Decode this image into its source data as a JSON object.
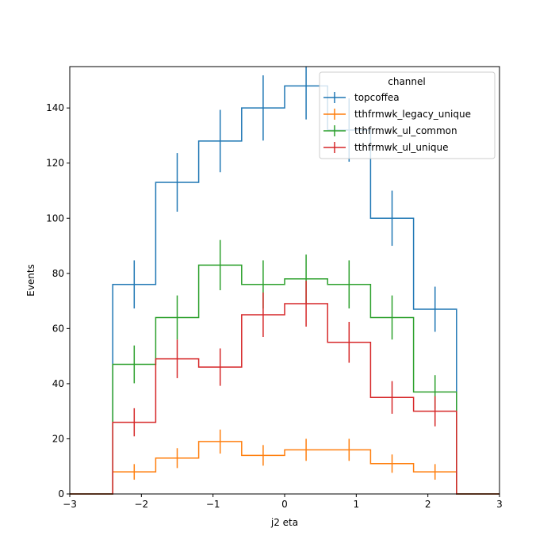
{
  "chart_data": {
    "type": "line",
    "title": "",
    "xlabel": "j2 eta",
    "ylabel": "Events",
    "xlim": [
      -3,
      3
    ],
    "ylim": [
      0,
      155
    ],
    "xticks": [
      -3,
      -2,
      -1,
      0,
      1,
      2,
      3
    ],
    "xtick_labels": [
      "−3",
      "−2",
      "−1",
      "0",
      "1",
      "2",
      "3"
    ],
    "yticks": [
      0,
      20,
      40,
      60,
      80,
      100,
      120,
      140
    ],
    "ytick_labels": [
      "0",
      "20",
      "40",
      "60",
      "80",
      "100",
      "120",
      "140"
    ],
    "grid": false,
    "legend": {
      "title": "channel",
      "placement": "top-right"
    },
    "bin_edges": [
      -3,
      -2.4,
      -1.8,
      -1.2,
      -0.6,
      0,
      0.6,
      1.2,
      1.8,
      2.4,
      3
    ],
    "series": [
      {
        "name": "topcoffea",
        "color": "#1f77b4",
        "values": [
          0,
          76,
          113,
          128,
          140,
          148,
          132,
          100,
          67,
          0
        ]
      },
      {
        "name": "tthfrmwk_legacy_unique",
        "color": "#ff7f0e",
        "values": [
          0,
          8,
          13,
          19,
          14,
          16,
          16,
          11,
          8,
          0
        ]
      },
      {
        "name": "tthfrmwk_ul_common",
        "color": "#2ca02c",
        "values": [
          0,
          47,
          64,
          83,
          76,
          78,
          76,
          64,
          37,
          0
        ]
      },
      {
        "name": "tthfrmwk_ul_unique",
        "color": "#d62728",
        "values": [
          0,
          26,
          49,
          46,
          65,
          69,
          55,
          35,
          30,
          0
        ]
      }
    ]
  }
}
